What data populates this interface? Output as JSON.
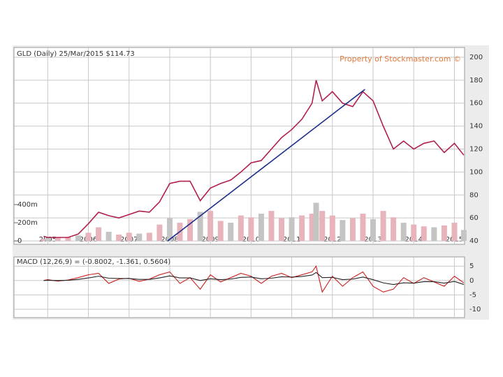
{
  "chart_data": [
    {
      "type": "line",
      "title": "GLD (Daily) 25/Mar/2015 $114.73",
      "annotation": "Property of Stockmaster.com ©",
      "x": [
        2004.9,
        2005,
        2005.25,
        2005.5,
        2005.75,
        2006,
        2006.25,
        2006.5,
        2006.75,
        2007,
        2007.25,
        2007.5,
        2007.75,
        2008,
        2008.25,
        2008.5,
        2008.75,
        2009,
        2009.25,
        2009.5,
        2009.75,
        2010,
        2010.25,
        2010.5,
        2010.75,
        2011,
        2011.25,
        2011.5,
        2011.6,
        2011.75,
        2012,
        2012.25,
        2012.5,
        2012.75,
        2013,
        2013.25,
        2013.5,
        2013.75,
        2014,
        2014.25,
        2014.5,
        2014.75,
        2015,
        2015.23
      ],
      "values": [
        44,
        43,
        43,
        43,
        46,
        55,
        65,
        62,
        60,
        63,
        66,
        65,
        74,
        90,
        92,
        92,
        75,
        86,
        90,
        93,
        100,
        108,
        110,
        120,
        130,
        137,
        146,
        160,
        180,
        162,
        170,
        160,
        157,
        170,
        162,
        140,
        120,
        127,
        120,
        125,
        127,
        117,
        125,
        114.73
      ],
      "color": "#b0204a",
      "xlim": [
        2004.17,
        2015.25
      ],
      "xticks": [
        2005,
        2006,
        2007,
        2008,
        2009,
        2010,
        2011,
        2012,
        2013,
        2014,
        2015
      ],
      "ylim": [
        37,
        208.5
      ],
      "yticks": [
        40,
        60,
        80,
        100,
        120,
        140,
        160,
        180,
        200
      ],
      "grid": true,
      "volume": {
        "values": [
          20000000,
          30000000,
          35000000,
          40000000,
          60000000,
          90000000,
          150000000,
          100000000,
          70000000,
          90000000,
          80000000,
          90000000,
          180000000,
          250000000,
          200000000,
          240000000,
          320000000,
          330000000,
          220000000,
          200000000,
          280000000,
          260000000,
          300000000,
          330000000,
          250000000,
          260000000,
          280000000,
          300000000,
          420000000,
          330000000,
          280000000,
          230000000,
          250000000,
          300000000,
          240000000,
          330000000,
          260000000,
          200000000,
          180000000,
          160000000,
          150000000,
          170000000,
          200000000,
          120000000
        ],
        "color": "#e8b4bc",
        "ylim": [
          -38000000,
          2130000000
        ],
        "yticks": [
          0,
          {
            "value": 200000000,
            "label": "200m"
          },
          {
            "value": 400000000,
            "label": "400m"
          }
        ]
      },
      "trendline": {
        "x": [
          2007.95,
          2012.8
        ],
        "values": [
          40,
          172
        ],
        "color": "#1a2f8a"
      }
    },
    {
      "type": "line",
      "title": "MACD (12,26,9) = (-0.8002, -1.361, 0.5604)",
      "x": [
        2004.9,
        2005,
        2005.25,
        2005.5,
        2005.75,
        2006,
        2006.25,
        2006.5,
        2006.75,
        2007,
        2007.25,
        2007.5,
        2007.75,
        2008,
        2008.25,
        2008.5,
        2008.75,
        2009,
        2009.25,
        2009.5,
        2009.75,
        2010,
        2010.25,
        2010.5,
        2010.75,
        2011,
        2011.25,
        2011.5,
        2011.6,
        2011.75,
        2012,
        2012.25,
        2012.5,
        2012.75,
        2013,
        2013.25,
        2013.5,
        2013.75,
        2014,
        2014.25,
        2014.5,
        2014.75,
        2015,
        2015.23
      ],
      "series": [
        {
          "color": "#cc1f1f",
          "values": [
            0,
            0.3,
            -0.2,
            0.2,
            1,
            2,
            2.5,
            -1,
            0.5,
            0.8,
            -0.3,
            0.5,
            2,
            3,
            -1,
            1,
            -3,
            2,
            -0.5,
            1,
            2.5,
            1.5,
            -1,
            1.5,
            2.5,
            1,
            2,
            3,
            5,
            -4,
            1.5,
            -2,
            1,
            3,
            -2,
            -4,
            -3,
            1,
            -1,
            1,
            -0.5,
            -2,
            1.5,
            -0.8002
          ]
        },
        {
          "color": "#222222",
          "values": [
            0,
            0.1,
            0,
            0.1,
            0.4,
            0.9,
            1.5,
            0.8,
            0.7,
            0.7,
            0.4,
            0.4,
            0.9,
            1.6,
            0.9,
            0.9,
            0,
            0.6,
            0.3,
            0.5,
            1.1,
            1.2,
            0.6,
            0.8,
            1.3,
            1.2,
            1.4,
            1.9,
            2.8,
            1,
            1.1,
            0.3,
            0.5,
            1.2,
            0.3,
            -0.8,
            -1.4,
            -0.8,
            -0.9,
            -0.4,
            -0.4,
            -0.9,
            -0.3,
            -1.361
          ]
        }
      ],
      "xlim": [
        2004.17,
        2015.25
      ],
      "xticks": [
        2005,
        2006,
        2007,
        2008,
        2009,
        2010,
        2011,
        2012,
        2013,
        2014,
        2015
      ],
      "ylim": [
        -12.9,
        8.2
      ],
      "yticks": [
        5,
        0,
        -5,
        -10
      ],
      "grid": true
    }
  ]
}
